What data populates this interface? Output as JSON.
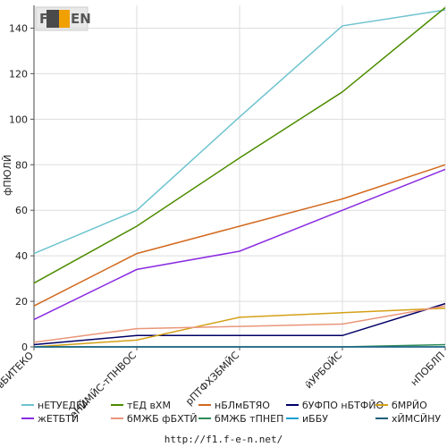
{
  "logo": {
    "text": "F1EN"
  },
  "footer": {
    "url": "http://f1.f-e-n.net/"
  },
  "chart_data": {
    "type": "line",
    "title": "",
    "xlabel": "",
    "ylabel": "фПЮЛЙ",
    "ylim": [
      0,
      150
    ],
    "yticks": [
      0,
      20,
      40,
      60,
      80,
      100,
      120,
      140
    ],
    "grid": true,
    "legend_position": "bottom",
    "categories": [
      "вБИТЕКО",
      "еНЙМЙС-тПНВОС",
      "рПТФХЗБМЙС",
      "йУРБОЙС",
      "нПОБЛП"
    ],
    "series": [
      {
        "name": "нЕТУЕДЕУ",
        "color": "#6ec3cf",
        "values": [
          41,
          60,
          101,
          141,
          148
        ]
      },
      {
        "name": "тЕД вХМ",
        "color": "#4d8c00",
        "values": [
          28,
          53,
          83,
          112,
          149
        ]
      },
      {
        "name": "нБЛмБТЯО",
        "color": "#d2691e",
        "values": [
          18,
          41,
          53,
          65,
          80
        ]
      },
      {
        "name": "бУФПО нБТФЙО",
        "color": "#000066",
        "values": [
          1,
          5,
          5,
          5,
          19
        ]
      },
      {
        "name": "бМРЙО",
        "color": "#d4a017",
        "values": [
          0,
          3,
          13,
          15,
          17
        ]
      },
      {
        "name": "жЕТБТЙ",
        "color": "#8a2be2",
        "values": [
          12,
          34,
          42,
          60,
          78
        ]
      },
      {
        "name": "бМЖБ фБХТЙ",
        "color": "#e9967a",
        "values": [
          2,
          8,
          9,
          10,
          18
        ]
      },
      {
        "name": "бМЖБ тПНЕП",
        "color": "#2e8b57",
        "values": [
          0,
          0,
          0,
          0,
          1
        ]
      },
      {
        "name": "иББУ",
        "color": "#1f9fd1",
        "values": [
          0,
          0,
          0,
          0,
          0
        ]
      },
      {
        "name": "хЙМСЙНУ",
        "color": "#1f5f7a",
        "values": [
          0,
          0,
          0,
          0,
          0
        ]
      }
    ]
  }
}
